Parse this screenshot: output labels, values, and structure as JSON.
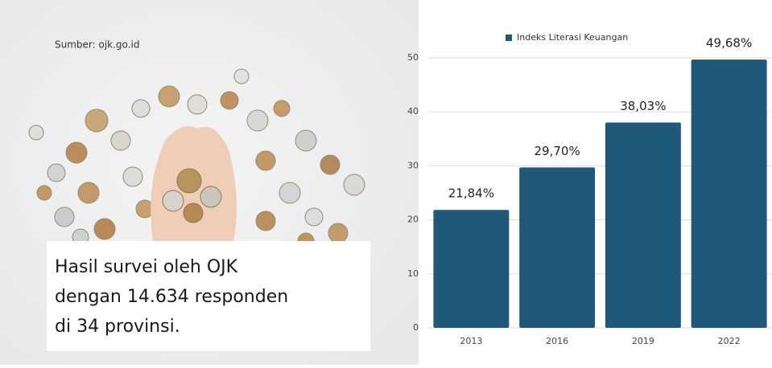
{
  "source": "Sumber: ojk.go.id",
  "caption": [
    "Hasil survei oleh OJK",
    "dengan 14.634 responden",
    "di 34 provinsi."
  ],
  "chart_data": {
    "type": "bar",
    "categories": [
      "2013",
      "2016",
      "2019",
      "2022"
    ],
    "series": [
      {
        "name": "Indeks Literasi Keuangan",
        "color": "#1f5878",
        "values": [
          21.84,
          29.7,
          38.03,
          49.68
        ],
        "value_labels": [
          "21,84%",
          "29,70%",
          "38,03%",
          "49,68%"
        ]
      }
    ],
    "ylim": [
      0,
      50
    ],
    "yticks": [
      0,
      10,
      20,
      30,
      40,
      50
    ],
    "grid": true
  }
}
